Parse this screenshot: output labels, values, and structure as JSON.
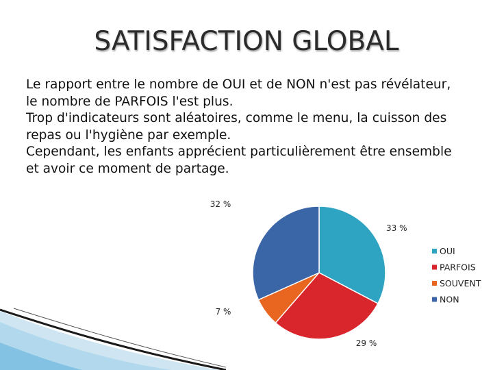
{
  "slide": {
    "title": "SATISFACTION GLOBAL",
    "paragraph_lines": [
      "Le rapport entre le nombre de OUI et de NON n'est pas révélateur,",
      "le nombre de PARFOIS l'est plus.",
      "Trop d'indicateurs sont aléatoires, comme le menu, la cuisson des",
      "repas ou l'hygiène par exemple.",
      "Cependant, les enfants apprécient particulièrement être ensemble",
      "et avoir ce moment de partage."
    ]
  },
  "chart_data": {
    "type": "pie",
    "categories": [
      "OUI",
      "PARFOIS",
      "SOUVENT",
      "NON"
    ],
    "values": [
      33,
      29,
      7,
      32
    ],
    "data_labels": [
      "33 %",
      "29 %",
      "7 %",
      "32 %"
    ],
    "colors": [
      "#2fa3c2",
      "#d9262d",
      "#e8661f",
      "#3a65a6"
    ],
    "legend_position": "right",
    "start": "top",
    "direction": "clockwise"
  }
}
